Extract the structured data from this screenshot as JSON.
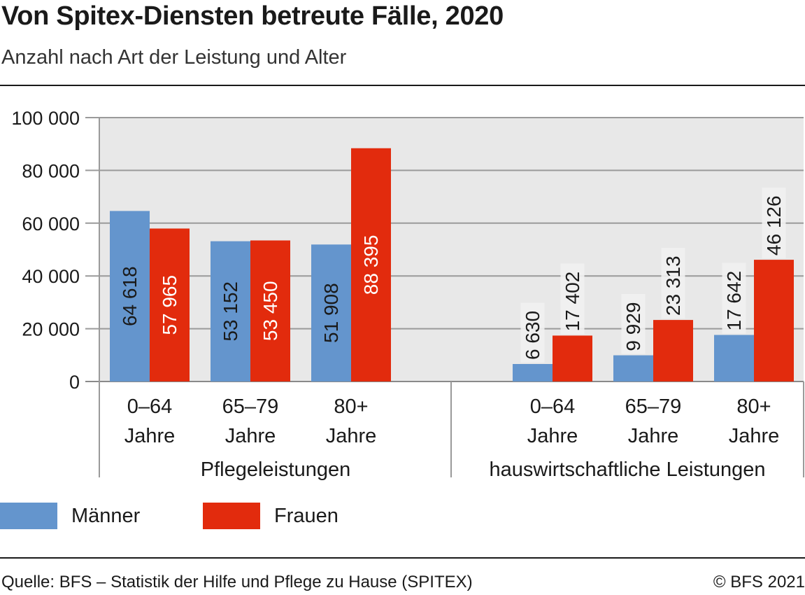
{
  "header": {
    "title": "Von Spitex-Diensten betreute Fälle, 2020",
    "subtitle": "Anzahl nach Art der Leistung und Alter"
  },
  "footer": {
    "source": "Quelle: BFS – Statistik der Hilfe und Pflege zu Hause (SPITEX)",
    "copyright": "© BFS 2021"
  },
  "colors": {
    "maenner": "#6495cd",
    "frauen": "#e22b0d",
    "grid": "#9a9a9a",
    "plot_bg": "#e8e8e8"
  },
  "legend": [
    {
      "label": "Männer",
      "color": "#6495cd"
    },
    {
      "label": "Frauen",
      "color": "#e22b0d"
    }
  ],
  "chart_data": {
    "type": "bar",
    "ylim": [
      0,
      100000
    ],
    "yticks": [
      0,
      20000,
      40000,
      60000,
      80000,
      100000
    ],
    "ytick_labels": [
      "0",
      "20 000",
      "40 000",
      "60 000",
      "80 000",
      "100 000"
    ],
    "grid": true,
    "legend_position": "bottom-left",
    "groups": [
      {
        "name": "Pflegeleistungen",
        "categories": [
          [
            "0–64",
            "Jahre"
          ],
          [
            "65–79",
            "Jahre"
          ],
          [
            "80+",
            "Jahre"
          ]
        ],
        "series": [
          {
            "name": "Männer",
            "values": [
              64618,
              53152,
              51908
            ],
            "labels": [
              "64 618",
              "53 152",
              "51 908"
            ]
          },
          {
            "name": "Frauen",
            "values": [
              57965,
              53450,
              88395
            ],
            "labels": [
              "57 965",
              "53 450",
              "88 395"
            ]
          }
        ]
      },
      {
        "name": "hauswirtschaftliche Leistungen",
        "categories": [
          [
            "0–64",
            "Jahre"
          ],
          [
            "65–79",
            "Jahre"
          ],
          [
            "80+",
            "Jahre"
          ]
        ],
        "series": [
          {
            "name": "Männer",
            "values": [
              6630,
              9929,
              17642
            ],
            "labels": [
              "6 630",
              "9 929",
              "17 642"
            ]
          },
          {
            "name": "Frauen",
            "values": [
              17402,
              23313,
              46126
            ],
            "labels": [
              "17 402",
              "23 313",
              "46 126"
            ]
          }
        ]
      }
    ]
  }
}
